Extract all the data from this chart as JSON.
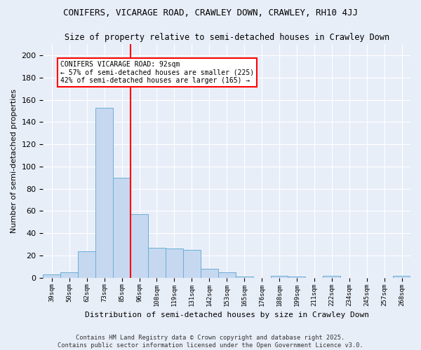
{
  "title1": "CONIFERS, VICARAGE ROAD, CRAWLEY DOWN, CRAWLEY, RH10 4JJ",
  "title2": "Size of property relative to semi-detached houses in Crawley Down",
  "xlabel": "Distribution of semi-detached houses by size in Crawley Down",
  "ylabel": "Number of semi-detached properties",
  "bin_labels": [
    "39sqm",
    "50sqm",
    "62sqm",
    "73sqm",
    "85sqm",
    "96sqm",
    "108sqm",
    "119sqm",
    "131sqm",
    "142sqm",
    "153sqm",
    "165sqm",
    "176sqm",
    "188sqm",
    "199sqm",
    "211sqm",
    "222sqm",
    "234sqm",
    "245sqm",
    "257sqm",
    "268sqm"
  ],
  "bin_values": [
    3,
    5,
    24,
    153,
    90,
    57,
    27,
    26,
    25,
    8,
    5,
    1,
    0,
    2,
    1,
    0,
    2,
    0,
    0,
    0,
    2
  ],
  "bar_color": "#c5d8f0",
  "bar_edge_color": "#6baed6",
  "vline_color": "red",
  "annotation_text": "CONIFERS VICARAGE ROAD: 92sqm\n← 57% of semi-detached houses are smaller (225)\n42% of semi-detached houses are larger (165) →",
  "annotation_box_color": "white",
  "annotation_box_edge_color": "red",
  "ylim": [
    0,
    210
  ],
  "yticks": [
    0,
    20,
    40,
    60,
    80,
    100,
    120,
    140,
    160,
    180,
    200
  ],
  "footer_text": "Contains HM Land Registry data © Crown copyright and database right 2025.\nContains public sector information licensed under the Open Government Licence v3.0.",
  "bg_color": "#e8eef8"
}
